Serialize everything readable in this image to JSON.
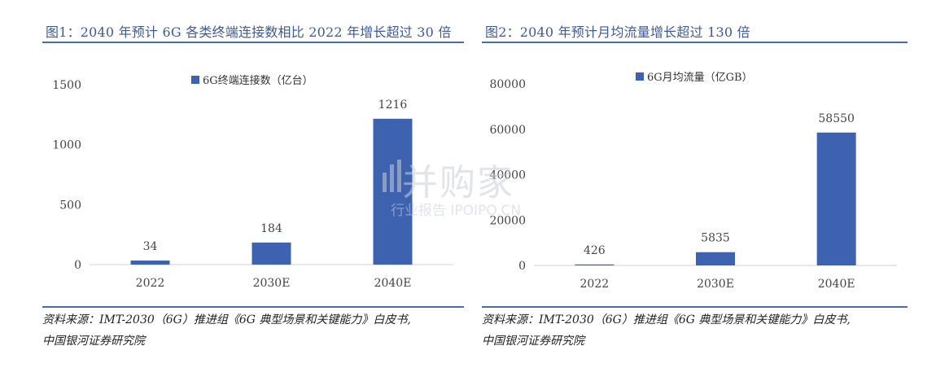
{
  "left": {
    "title": "图1：2040 年预计 6G 各类终端连接数相比 2022 年增长超过 30 倍",
    "source_line1": "资料来源：IMT-2030（6G）推进组《6G 典型场景和关键能力》白皮书,",
    "source_line2": "中国银河证券研究院"
  },
  "right": {
    "title": "图2：2040 年预计月均流量增长超过 130 倍",
    "source_line1": "资料来源：IMT-2030（6G）推进组《6G 典型场景和关键能力》白皮书,",
    "source_line2": "中国银河证券研究院"
  },
  "watermark": {
    "brand": "并购家",
    "sub": "行业报告 IPOIPO.CN"
  },
  "colors": {
    "bar": "#3d63b0",
    "title": "#3d5a99",
    "rule": "#4a6bad"
  },
  "chart_data": [
    {
      "type": "bar",
      "title": "",
      "categories": [
        "2022",
        "2030E",
        "2040E"
      ],
      "series": [
        {
          "name": "6G终端连接数（亿台）",
          "values": [
            34,
            184,
            1216
          ]
        }
      ],
      "data_labels": [
        "34",
        "184",
        "1216"
      ],
      "y_ticks": [
        "0",
        "500",
        "1000",
        "1500"
      ],
      "ylim": [
        0,
        1500
      ],
      "xlabel": "",
      "ylabel": "",
      "grid": false,
      "legend": "top-center"
    },
    {
      "type": "bar",
      "title": "",
      "categories": [
        "2022",
        "2030E",
        "2040E"
      ],
      "series": [
        {
          "name": "6G月均流量（亿GB）",
          "values": [
            426,
            5835,
            58550
          ]
        }
      ],
      "data_labels": [
        "426",
        "5835",
        "58550"
      ],
      "y_ticks": [
        "0",
        "20000",
        "40000",
        "60000",
        "80000"
      ],
      "ylim": [
        0,
        80000
      ],
      "xlabel": "",
      "ylabel": "",
      "grid": false,
      "legend": "top-center"
    }
  ]
}
